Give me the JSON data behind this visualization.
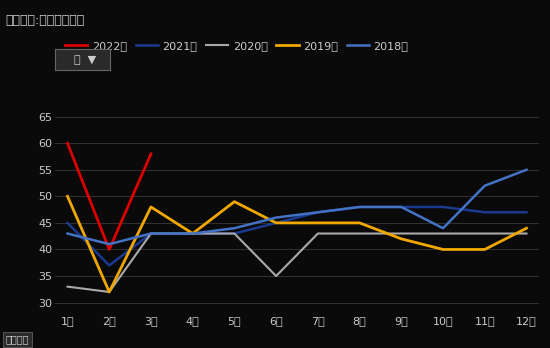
{
  "title": "平均值项:铝材出口总量",
  "filter_label": "年  ▼",
  "xlabel": "指标名称",
  "xlabels": [
    "1月",
    "2月",
    "3月",
    "4月",
    "5月",
    "6月",
    "7月",
    "8月",
    "9月",
    "10月",
    "11月",
    "12月"
  ],
  "ylim": [
    28,
    66
  ],
  "yticks": [
    30,
    35,
    40,
    45,
    50,
    55,
    60,
    65
  ],
  "series": [
    {
      "label": "2022年",
      "color": "#dd0000",
      "linewidth": 2.0,
      "values": [
        60,
        40,
        58,
        null,
        null,
        null,
        null,
        null,
        null,
        null,
        null,
        null
      ]
    },
    {
      "label": "2021年",
      "color": "#1a3a8f",
      "linewidth": 1.8,
      "values": [
        45,
        37,
        43,
        43,
        43,
        45,
        47,
        48,
        48,
        48,
        47,
        47
      ]
    },
    {
      "label": "2020年",
      "color": "#aaaaaa",
      "linewidth": 1.5,
      "values": [
        33,
        32,
        43,
        43,
        43,
        35,
        43,
        43,
        43,
        43,
        43,
        43
      ]
    },
    {
      "label": "2019年",
      "color": "#f0a800",
      "linewidth": 2.0,
      "values": [
        50,
        32,
        48,
        43,
        49,
        45,
        45,
        45,
        42,
        40,
        40,
        44
      ]
    },
    {
      "label": "2018年",
      "color": "#4472c4",
      "linewidth": 1.8,
      "values": [
        43,
        41,
        43,
        43,
        44,
        46,
        47,
        48,
        48,
        44,
        52,
        55
      ]
    }
  ],
  "background_color": "#0a0a0a",
  "plot_bg_color": "#0a0a0a",
  "text_color": "#cccccc",
  "grid_color": "#383838",
  "title_fontsize": 9,
  "tick_fontsize": 8,
  "legend_fontsize": 8,
  "filter_box_color": "#2a2a2a",
  "filter_box_edge": "#666666"
}
